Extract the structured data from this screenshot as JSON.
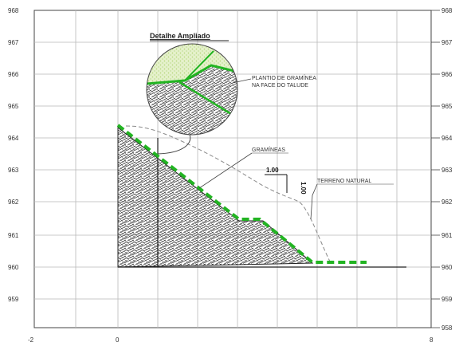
{
  "colors": {
    "grid": "#b9b9b9",
    "hatch": "#3a3a3a",
    "grass": "#22b422",
    "grass_fill": "#cfe6a0",
    "terrain": "#8a8a8a",
    "line": "#222222"
  },
  "axes": {
    "y_ticks": [
      "968",
      "967",
      "966",
      "965",
      "964",
      "963",
      "962",
      "961",
      "960",
      "959",
      "958"
    ],
    "x_ticks": [
      "-2",
      "0",
      "8"
    ]
  },
  "detail": {
    "title": "Detalhe Ampliado",
    "label_line1": "PLANTIO DE GRAMÍNEA",
    "label_line2": "NA FACE DO TALUDE"
  },
  "labels": {
    "graminea": "GRAMÍNEAS",
    "terreno": "TERRENO NATURAL",
    "slope_h": "1.00",
    "slope_v": "1.00"
  }
}
